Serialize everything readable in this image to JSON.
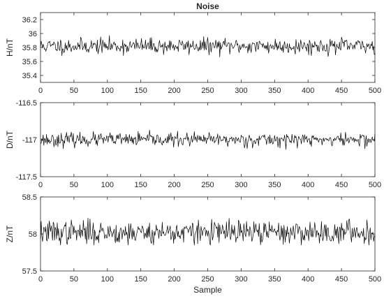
{
  "chart_data": [
    {
      "type": "line",
      "title": "Noise",
      "xlabel": "",
      "ylabel": "H/nT",
      "xlim": [
        0,
        500
      ],
      "ylim": [
        35.3,
        36.3
      ],
      "xticks": [
        0,
        50,
        100,
        150,
        200,
        250,
        300,
        350,
        400,
        450,
        500
      ],
      "yticks": [
        35.4,
        35.6,
        35.8,
        36,
        36.2
      ],
      "ytick_labels": [
        "35.4",
        "35.6",
        "35.8",
        "36",
        "36.2"
      ],
      "series_style": {
        "color": "#000000",
        "mean": 35.82,
        "amplitude": 0.055,
        "max": 36.0,
        "min": 35.66,
        "seed": 11
      },
      "grid": false
    },
    {
      "type": "line",
      "title": "",
      "xlabel": "",
      "ylabel": "D/nT",
      "xlim": [
        0,
        500
      ],
      "ylim": [
        -117.5,
        -116.5
      ],
      "xticks": [
        0,
        50,
        100,
        150,
        200,
        250,
        300,
        350,
        400,
        450,
        500
      ],
      "yticks": [
        -117.5,
        -117,
        -116.5
      ],
      "ytick_labels": [
        "-117.5",
        "-117",
        "-116.5"
      ],
      "series_style": {
        "color": "#000000",
        "mean": -117.0,
        "amplitude": 0.045,
        "max": -116.87,
        "min": -117.14,
        "seed": 23
      },
      "grid": false
    },
    {
      "type": "line",
      "title": "",
      "xlabel": "Sample",
      "ylabel": "Z/nT",
      "xlim": [
        0,
        500
      ],
      "ylim": [
        57.5,
        58.5
      ],
      "xticks": [
        0,
        50,
        100,
        150,
        200,
        250,
        300,
        350,
        400,
        450,
        500
      ],
      "yticks": [
        57.5,
        58,
        58.5
      ],
      "ytick_labels": [
        "57.5",
        "58",
        "58.5"
      ],
      "series_style": {
        "color": "#000000",
        "mean": 58.02,
        "amplitude": 0.08,
        "max": 58.25,
        "min": 57.85,
        "seed": 37
      },
      "grid": false
    }
  ]
}
